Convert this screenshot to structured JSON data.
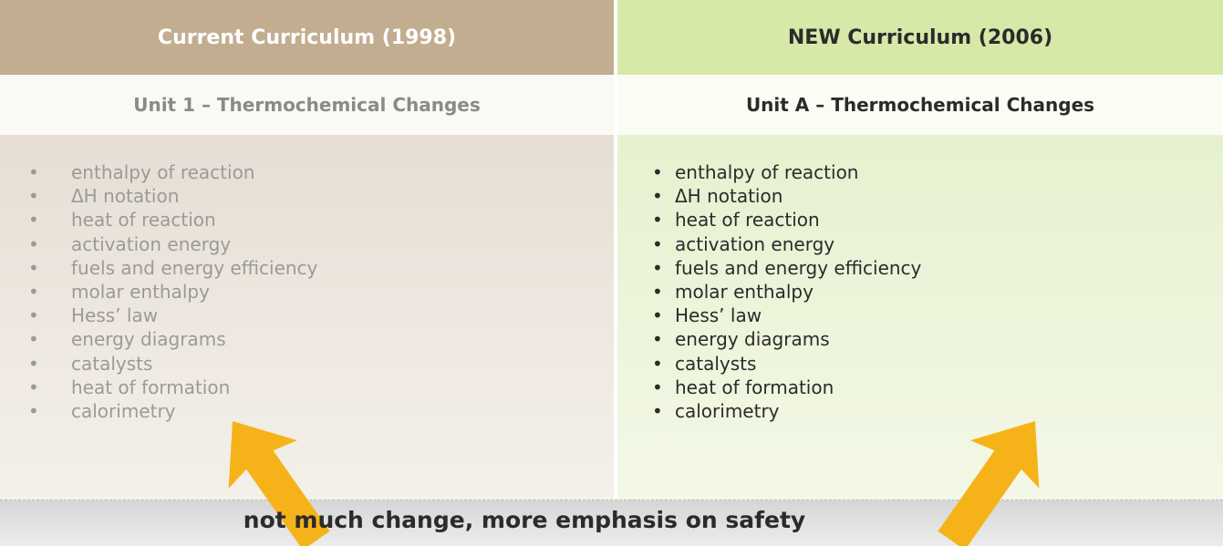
{
  "columns": [
    {
      "header": "Current Curriculum (1998)",
      "unit": "Unit 1 – Thermochemical Changes",
      "items": [
        "enthalpy of reaction",
        "ΔH notation",
        "heat of reaction",
        "activation energy",
        "fuels and energy efficiency",
        "molar enthalpy",
        "Hess’ law",
        "energy diagrams",
        "catalysts",
        "heat of formation",
        "calorimetry"
      ]
    },
    {
      "header": "NEW Curriculum (2006)",
      "unit": "Unit A – Thermochemical Changes",
      "items": [
        "enthalpy of reaction",
        "ΔH notation",
        "heat of reaction",
        "activation energy",
        "fuels and energy efficiency",
        "molar enthalpy",
        "Hess’ law",
        "energy diagrams",
        "catalysts",
        "heat of formation",
        "calorimetry"
      ]
    }
  ],
  "footer": "not much change, more emphasis on safety"
}
